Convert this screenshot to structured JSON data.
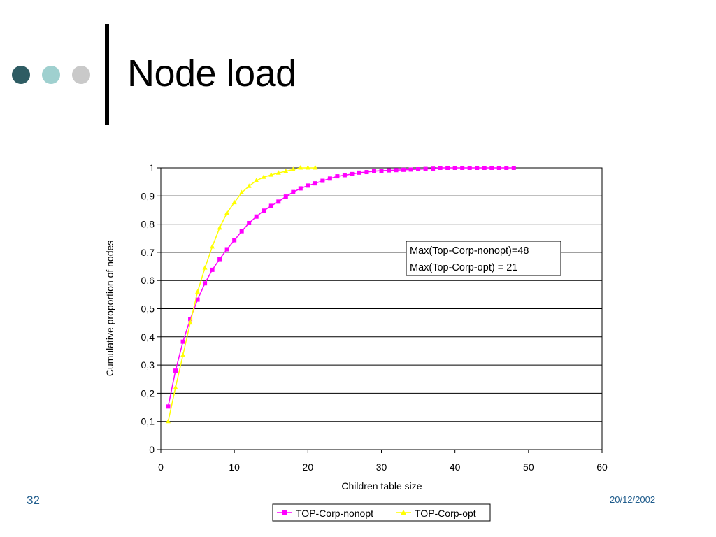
{
  "slide": {
    "title": "Node load",
    "number": "32",
    "date": "20/12/2002",
    "decor_colors": [
      "#2e5c63",
      "#9fd0cf",
      "#c9c9c9"
    ]
  },
  "chart_data": {
    "type": "line",
    "xlabel": "Children table size",
    "ylabel": "Cumulative proportion of nodes",
    "xlim": [
      0,
      60
    ],
    "ylim": [
      0,
      1
    ],
    "x_ticks": [
      "0",
      "10",
      "20",
      "30",
      "40",
      "50",
      "60"
    ],
    "x_tick_values": [
      0,
      10,
      20,
      30,
      40,
      50,
      60
    ],
    "y_ticks": [
      "0",
      "0,1",
      "0,2",
      "0,3",
      "0,4",
      "0,5",
      "0,6",
      "0,7",
      "0,8",
      "0,9",
      "1"
    ],
    "y_tick_values": [
      0,
      0.1,
      0.2,
      0.3,
      0.4,
      0.5,
      0.6,
      0.7,
      0.8,
      0.9,
      1
    ],
    "grid": "horizontal",
    "legend_position": "bottom",
    "annotation": [
      "Max(Top-Corp-nonopt)=48",
      "Max(Top-Corp-opt) = 21"
    ],
    "series": [
      {
        "name": "TOP-Corp-nonopt",
        "color": "#ff00ff",
        "marker": "square",
        "x": [
          1,
          2,
          3,
          4,
          5,
          6,
          7,
          8,
          9,
          10,
          11,
          12,
          13,
          14,
          15,
          16,
          17,
          18,
          19,
          20,
          21,
          22,
          23,
          24,
          25,
          26,
          27,
          28,
          29,
          30,
          31,
          32,
          33,
          34,
          35,
          36,
          37,
          38,
          39,
          40,
          41,
          42,
          43,
          44,
          45,
          46,
          47,
          48
        ],
        "y": [
          0.153,
          0.28,
          0.383,
          0.463,
          0.532,
          0.59,
          0.638,
          0.676,
          0.711,
          0.743,
          0.775,
          0.804,
          0.827,
          0.848,
          0.865,
          0.88,
          0.898,
          0.914,
          0.927,
          0.937,
          0.945,
          0.954,
          0.962,
          0.97,
          0.974,
          0.978,
          0.983,
          0.985,
          0.988,
          0.99,
          0.991,
          0.992,
          0.993,
          0.994,
          0.995,
          0.996,
          0.997,
          1.0,
          1.0,
          1.0,
          1.0,
          1.0,
          1.0,
          1.0,
          1.0,
          1.0,
          1.0,
          1.0
        ]
      },
      {
        "name": "TOP-Corp-opt",
        "color": "#ffff00",
        "marker": "triangle",
        "x": [
          1,
          2,
          3,
          4,
          5,
          6,
          7,
          8,
          9,
          10,
          11,
          12,
          13,
          14,
          15,
          16,
          17,
          18,
          19,
          20,
          21
        ],
        "y": [
          0.1,
          0.22,
          0.335,
          0.45,
          0.56,
          0.645,
          0.72,
          0.787,
          0.84,
          0.877,
          0.912,
          0.935,
          0.955,
          0.967,
          0.975,
          0.982,
          0.988,
          0.994,
          1.0,
          1.0,
          1.0
        ]
      }
    ]
  }
}
